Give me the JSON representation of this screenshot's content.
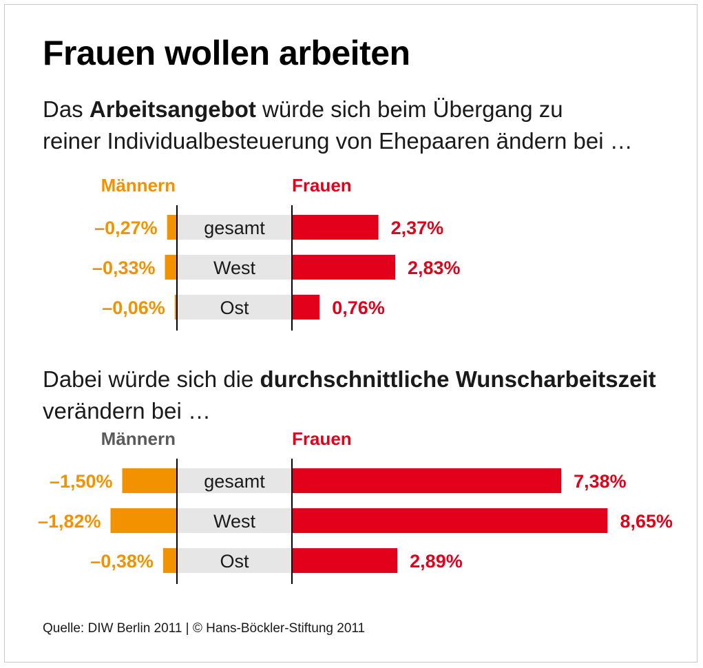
{
  "title": "Frauen wollen arbeiten",
  "intro1": {
    "pre": "Das ",
    "bold": "Arbeitsangebot",
    "post": " würde sich beim Übergang zu",
    "line2": "reiner Individualbesteuerung von Ehepaaren ändern bei …"
  },
  "intro2": {
    "pre": "Dabei würde sich die ",
    "bold": "durchschnittliche Wunscharbeitszeit",
    "line2": "verändern bei …"
  },
  "source": "Quelle: DIW Berlin 2011 | © Hans-Böckler-Stiftung 2011",
  "colors": {
    "men": "#f39200",
    "women": "#e2001a",
    "label_band": "#e6e6e6",
    "axis": "#000000",
    "men_header_chart2": "#5a5a5a"
  },
  "chart_data": [
    {
      "type": "bar",
      "orientation": "horizontal-diverging",
      "categories": [
        "gesamt",
        "West",
        "Ost"
      ],
      "series": [
        {
          "name": "Männern",
          "values": [
            -0.27,
            -0.33,
            -0.06
          ],
          "labels": [
            "–0,27%",
            "–0,33%",
            "–0,06%"
          ]
        },
        {
          "name": "Frauen",
          "values": [
            2.37,
            2.83,
            0.76
          ],
          "labels": [
            "2,37%",
            "2,83%",
            "0,76%"
          ]
        }
      ],
      "unit": "%"
    },
    {
      "type": "bar",
      "orientation": "horizontal-diverging",
      "categories": [
        "gesamt",
        "West",
        "Ost"
      ],
      "series": [
        {
          "name": "Männern",
          "values": [
            -1.5,
            -1.82,
            -0.38
          ],
          "labels": [
            "–1,50%",
            "–1,82%",
            "–0,38%"
          ]
        },
        {
          "name": "Frauen",
          "values": [
            7.38,
            8.65,
            2.89
          ],
          "labels": [
            "7,38%",
            "8,65%",
            "2,89%"
          ]
        }
      ],
      "unit": "%"
    }
  ]
}
